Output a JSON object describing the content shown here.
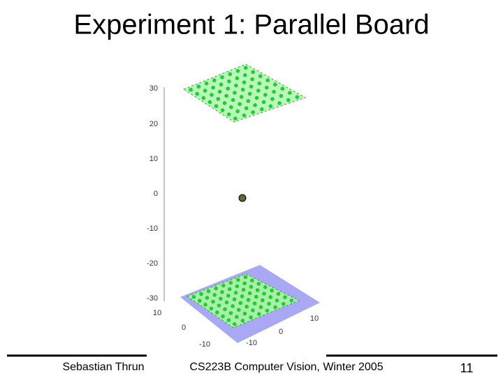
{
  "title": "Experiment 1: Parallel Board",
  "figure": {
    "z_ticks": [
      "30",
      "20",
      "10",
      "0",
      "-10",
      "-20",
      "-30"
    ],
    "x_ticks": [
      "10",
      "0",
      "-10"
    ],
    "y_ticks": [
      "-10",
      "0",
      "10"
    ]
  },
  "footer": {
    "author": "Sebastian Thrun",
    "course": "CS223B Computer Vision, Winter 2005",
    "page": "11"
  }
}
